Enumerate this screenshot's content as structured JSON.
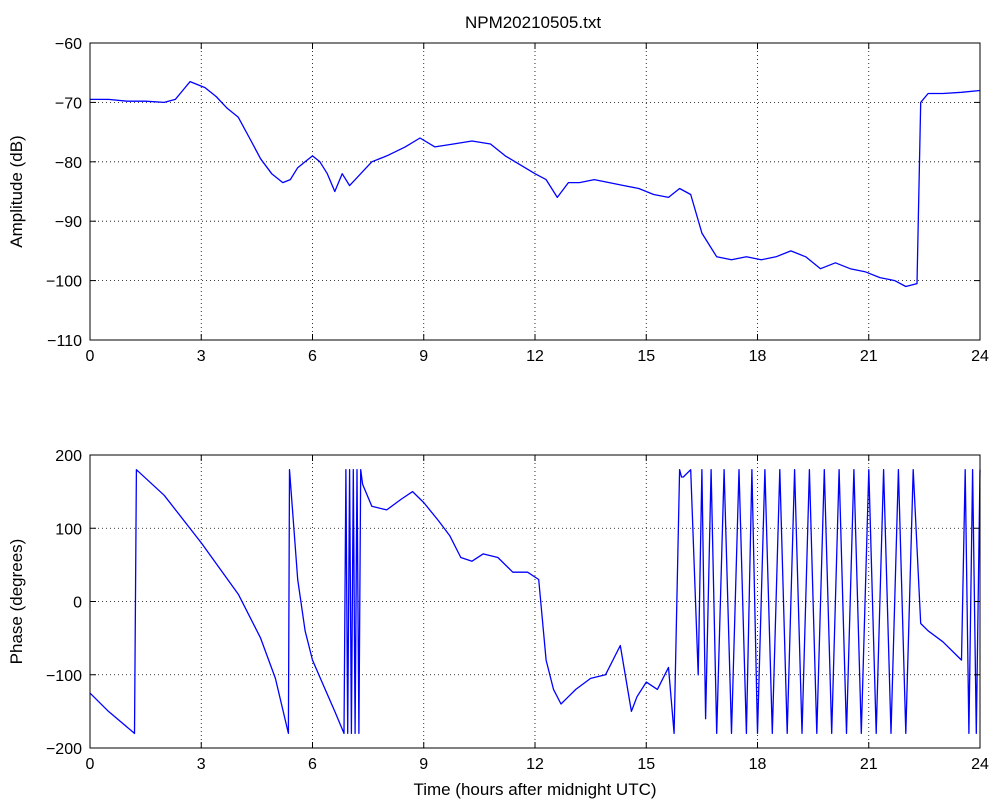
{
  "chart_data": [
    {
      "type": "line",
      "title": "NPM20210505.txt",
      "xlabel": "",
      "ylabel": "Amplitude (dB)",
      "xlim": [
        0,
        24
      ],
      "ylim": [
        -110,
        -60
      ],
      "xticks": [
        0,
        3,
        6,
        9,
        12,
        15,
        18,
        21,
        24
      ],
      "yticks": [
        -110,
        -100,
        -90,
        -80,
        -70,
        -60
      ],
      "grid": true,
      "line_color": "#0000ff",
      "series": [
        {
          "x": [
            0,
            0.5,
            1,
            1.5,
            2,
            2.3,
            2.5,
            2.7,
            2.9,
            3.1,
            3.4,
            3.7,
            4.0,
            4.3,
            4.6,
            4.9,
            5.2,
            5.4,
            5.6,
            5.8,
            6.0,
            6.2,
            6.4,
            6.6,
            6.8,
            7.0,
            7.3,
            7.6,
            8.0,
            8.5,
            8.9,
            9.3,
            9.8,
            10.3,
            10.8,
            11.2,
            11.6,
            12.0,
            12.3,
            12.6,
            12.9,
            13.2,
            13.6,
            14.0,
            14.4,
            14.8,
            15.2,
            15.6,
            15.9,
            16.2,
            16.5,
            16.9,
            17.3,
            17.7,
            18.1,
            18.5,
            18.9,
            19.3,
            19.7,
            20.1,
            20.5,
            20.9,
            21.3,
            21.7,
            22.0,
            22.3,
            22.4,
            22.6,
            23.0,
            23.5,
            24.0
          ],
          "y": [
            -69.5,
            -69.5,
            -69.8,
            -69.8,
            -70,
            -69.5,
            -68,
            -66.5,
            -67,
            -67.5,
            -69,
            -71,
            -72.5,
            -76,
            -79.5,
            -82,
            -83.5,
            -83,
            -81,
            -80,
            -79,
            -80,
            -82,
            -85,
            -82,
            -84,
            -82,
            -80,
            -79,
            -77.5,
            -76,
            -77.5,
            -77,
            -76.5,
            -77,
            -79,
            -80.5,
            -82,
            -83,
            -86,
            -83.5,
            -83.5,
            -83,
            -83.5,
            -84,
            -84.5,
            -85.5,
            -86,
            -84.5,
            -85.5,
            -92,
            -96,
            -96.5,
            -96,
            -96.5,
            -96,
            -95,
            -96,
            -98,
            -97,
            -98,
            -98.5,
            -99.5,
            -100,
            -101,
            -100.5,
            -70,
            -68.5,
            -68.5,
            -68.3,
            -68
          ]
        }
      ]
    },
    {
      "type": "line",
      "title": "",
      "xlabel": "Time (hours after midnight UTC)",
      "ylabel": "Phase (degrees)",
      "xlim": [
        0,
        24
      ],
      "ylim": [
        -200,
        200
      ],
      "xticks": [
        0,
        3,
        6,
        9,
        12,
        15,
        18,
        21,
        24
      ],
      "yticks": [
        -200,
        -100,
        0,
        100,
        200
      ],
      "grid": true,
      "line_color": "#0000ff",
      "series": [
        {
          "x": [
            0,
            0.5,
            1.2,
            1.25,
            2.0,
            3.0,
            4.0,
            4.6,
            5.0,
            5.35,
            5.38,
            5.6,
            5.8,
            6.0,
            6.3,
            6.6,
            6.85,
            6.9,
            6.95,
            7.0,
            7.05,
            7.1,
            7.15,
            7.2,
            7.25,
            7.3,
            7.35,
            7.6,
            8.0,
            8.4,
            8.7,
            9.0,
            9.4,
            9.7,
            10.0,
            10.3,
            10.6,
            11.0,
            11.4,
            11.8,
            12.1,
            12.3,
            12.5,
            12.7,
            12.9,
            13.1,
            13.5,
            13.9,
            14.3,
            14.6,
            14.75,
            15.0,
            15.3,
            15.6,
            15.75,
            15.9,
            15.95,
            16.0,
            16.2,
            16.4,
            16.5,
            16.6,
            16.75,
            16.9,
            17.1,
            17.3,
            17.5,
            17.7,
            17.85,
            18.0,
            18.2,
            18.4,
            18.6,
            18.8,
            19.0,
            19.2,
            19.4,
            19.6,
            19.8,
            20.0,
            20.2,
            20.4,
            20.6,
            20.8,
            21.0,
            21.2,
            21.4,
            21.6,
            21.8,
            22.0,
            22.2,
            22.4,
            22.6,
            23.0,
            23.5,
            23.6,
            23.7,
            23.8,
            23.9,
            24.0
          ],
          "y": [
            -125,
            -150,
            -180,
            180,
            145,
            80,
            10,
            -50,
            -105,
            -180,
            180,
            30,
            -40,
            -80,
            -115,
            -150,
            -180,
            180,
            -180,
            180,
            -180,
            180,
            -180,
            180,
            -180,
            180,
            160,
            130,
            125,
            140,
            150,
            135,
            110,
            90,
            60,
            55,
            65,
            60,
            40,
            40,
            30,
            -80,
            -120,
            -140,
            -130,
            -120,
            -105,
            -100,
            -60,
            -150,
            -130,
            -110,
            -120,
            -90,
            -180,
            180,
            170,
            170,
            180,
            -100,
            180,
            -160,
            180,
            -180,
            180,
            -180,
            180,
            -180,
            180,
            -180,
            180,
            -180,
            180,
            -180,
            180,
            -180,
            180,
            -180,
            180,
            -180,
            180,
            -180,
            180,
            -180,
            180,
            -180,
            180,
            -180,
            180,
            -180,
            180,
            -30,
            -40,
            -55,
            -80,
            180,
            -180,
            180,
            -180,
            180
          ]
        }
      ]
    }
  ]
}
